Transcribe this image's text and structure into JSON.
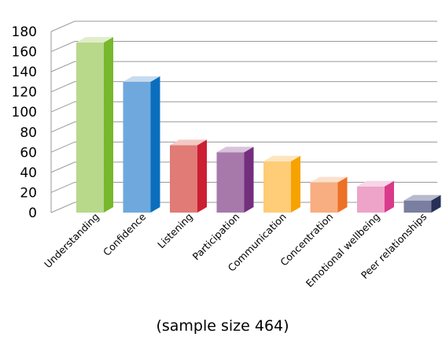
{
  "chart_data": {
    "type": "bar",
    "title": "",
    "xlabel": "(sample size 464)",
    "ylabel": "",
    "ylim": [
      0,
      180
    ],
    "yticks": [
      0,
      20,
      40,
      60,
      80,
      100,
      120,
      140,
      160,
      180
    ],
    "grid": true,
    "categories": [
      "Understanding",
      "Confidence",
      "Listening",
      "Participation",
      "Communication",
      "Concentration",
      "Emotional wellbeing",
      "Peer relationships"
    ],
    "values": [
      169,
      130,
      67,
      60,
      51,
      30,
      26,
      12
    ],
    "colors": {
      "front": [
        "#b8d88a",
        "#6fa8dc",
        "#e07b76",
        "#a779ab",
        "#ffcc77",
        "#f8ae80",
        "#eda4c8",
        "#7a7ea0"
      ],
      "side": [
        "#77b82d",
        "#0a6ebd",
        "#cc1f33",
        "#732f7e",
        "#f6a300",
        "#ec7026",
        "#da3a8a",
        "#263057"
      ],
      "top": [
        "#e0eecb",
        "#c6dbf1",
        "#f3c9c4",
        "#d9c3dc",
        "#fde6bd",
        "#fde0cc",
        "#f7d6e6",
        "#b7bacd"
      ]
    }
  }
}
